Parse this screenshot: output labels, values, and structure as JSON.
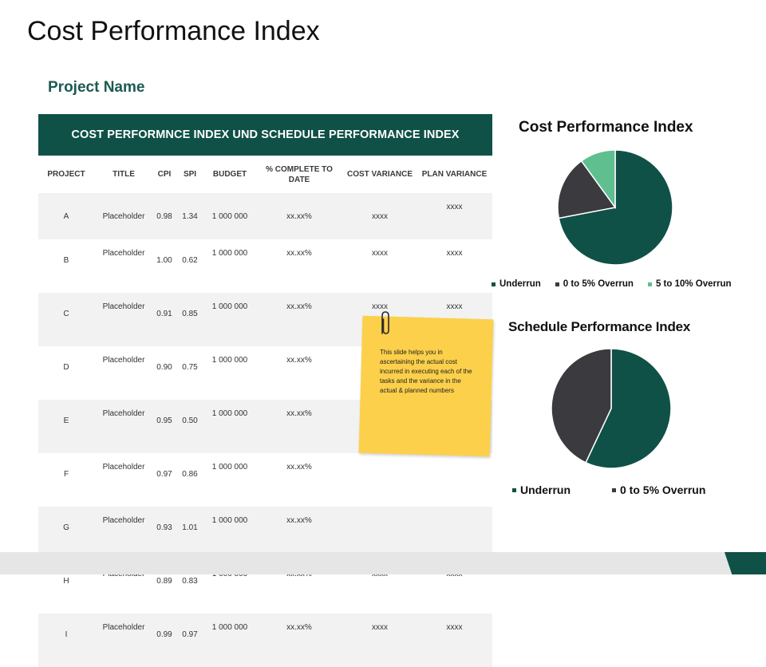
{
  "slide": {
    "title": "Cost Performance Index",
    "subtitle": "Project Name"
  },
  "table": {
    "banner": "COST PERFORMNCE INDEX UND SCHEDULE PERFORMANCE INDEX",
    "headers": [
      "PROJECT",
      "TITLE",
      "CPI",
      "SPI",
      "BUDGET",
      "% COMPLETE TO DATE",
      "COST VARIANCE",
      "PLAN VARIANCE"
    ],
    "rows": [
      {
        "project": "A",
        "title": "Placeholder",
        "cpi": "0.98",
        "spi": "1.34",
        "budget": "1 000 000",
        "complete": "xx.xx%",
        "cost_variance": "xxxx",
        "plan_variance": "xxxx"
      },
      {
        "project": "B",
        "title": "Placeholder",
        "cpi": "1.00",
        "spi": "0.62",
        "budget": "1 000 000",
        "complete": "xx.xx%",
        "cost_variance": "xxxx",
        "plan_variance": "xxxx"
      },
      {
        "project": "C",
        "title": "Placeholder",
        "cpi": "0.91",
        "spi": "0.85",
        "budget": "1 000 000",
        "complete": "xx.xx%",
        "cost_variance": "xxxx",
        "plan_variance": "xxxx"
      },
      {
        "project": "D",
        "title": "Placeholder",
        "cpi": "0.90",
        "spi": "0.75",
        "budget": "1 000 000",
        "complete": "xx.xx%",
        "cost_variance": "xxxx",
        "plan_variance": "xxxx"
      },
      {
        "project": "E",
        "title": "Placeholder",
        "cpi": "0.95",
        "spi": "0.50",
        "budget": "1 000 000",
        "complete": "xx.xx%",
        "cost_variance": "",
        "plan_variance": ""
      },
      {
        "project": "F",
        "title": "Placeholder",
        "cpi": "0.97",
        "spi": "0.86",
        "budget": "1 000 000",
        "complete": "xx.xx%",
        "cost_variance": "",
        "plan_variance": ""
      },
      {
        "project": "G",
        "title": "Placeholder",
        "cpi": "0.93",
        "spi": "1.01",
        "budget": "1 000 000",
        "complete": "xx.xx%",
        "cost_variance": "",
        "plan_variance": ""
      },
      {
        "project": "H",
        "title": "Placeholder",
        "cpi": "0.89",
        "spi": "0.83",
        "budget": "1 000 000",
        "complete": "xx.xx%",
        "cost_variance": "xxxx",
        "plan_variance": "xxxx"
      },
      {
        "project": "I",
        "title": "Placeholder",
        "cpi": "0.99",
        "spi": "0.97",
        "budget": "1 000 000",
        "complete": "xx.xx%",
        "cost_variance": "xxxx",
        "plan_variance": "xxxx"
      }
    ]
  },
  "sticky_note": {
    "text": "This slide helps you in ascertaining the actual cost incurred in executing each of the tasks and the variance in the actual & planned numbers",
    "icon": "paperclip-icon"
  },
  "colors": {
    "brand": "#0f5147",
    "dark": "#3a3a3f",
    "light_green": "#5fbf8f",
    "note": "#fcd04a"
  },
  "chart_data": [
    {
      "type": "pie",
      "title": "Cost Performance Index",
      "series": [
        {
          "name": "Underrun",
          "value": 72,
          "color": "#0f5147"
        },
        {
          "name": "0 to 5% Overrun",
          "value": 18,
          "color": "#3a3a3f"
        },
        {
          "name": "5 to 10% Overrun",
          "value": 10,
          "color": "#5fbf8f"
        }
      ]
    },
    {
      "type": "pie",
      "title": "Schedule Performance Index",
      "series": [
        {
          "name": "Underrun",
          "value": 57,
          "color": "#0f5147"
        },
        {
          "name": "0 to 5% Overrun",
          "value": 43,
          "color": "#3a3a3f"
        }
      ]
    }
  ]
}
